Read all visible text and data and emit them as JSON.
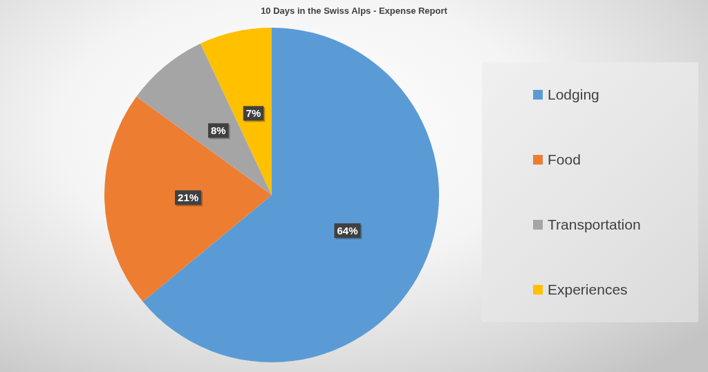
{
  "chart_data": {
    "type": "pie",
    "title": "10 Days in the Swiss Alps - Expense Report",
    "categories": [
      "Lodging",
      "Food",
      "Transportation",
      "Experiences"
    ],
    "values": [
      64,
      21,
      8,
      7
    ],
    "colors": [
      "#5b9bd5",
      "#ed7d31",
      "#a5a5a5",
      "#ffc000"
    ],
    "value_labels": [
      "64%",
      "21%",
      "8%",
      "7%"
    ],
    "legend": "right"
  }
}
